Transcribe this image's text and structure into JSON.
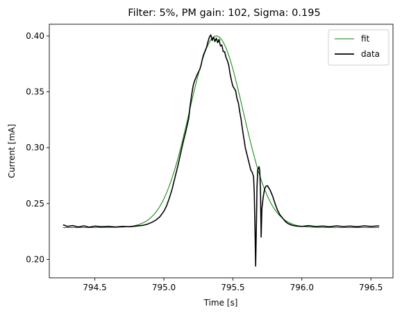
{
  "chart_data": {
    "type": "line",
    "title": "Filter: 5%, PM gain: 102, Sigma: 0.195",
    "xlabel": "Time [s]",
    "ylabel": "Current [mA]",
    "xlim": [
      794.17,
      796.66
    ],
    "ylim": [
      0.1835,
      0.4105
    ],
    "xticks": [
      794.5,
      795.0,
      795.5,
      796.0,
      796.5
    ],
    "xtick_labels": [
      "794.5",
      "795.0",
      "795.5",
      "796.0",
      "796.5"
    ],
    "yticks": [
      0.2,
      0.25,
      0.3,
      0.35,
      0.4
    ],
    "ytick_labels": [
      "0.20",
      "0.25",
      "0.30",
      "0.35",
      "0.40"
    ],
    "grid": false,
    "legend_position": "top-right",
    "series": [
      {
        "name": "fit",
        "color": "#008000",
        "style": "thin line",
        "model": "gaussian",
        "baseline": 0.2285,
        "amplitude": 0.1715,
        "center": 795.38,
        "sigma": 0.195,
        "x_range": [
          794.27,
          796.56
        ]
      },
      {
        "name": "data",
        "color": "#000000",
        "style": "line",
        "points": [
          [
            794.27,
            0.231
          ],
          [
            794.3,
            0.2295
          ],
          [
            794.34,
            0.2302
          ],
          [
            794.38,
            0.229
          ],
          [
            794.42,
            0.23
          ],
          [
            794.46,
            0.2288
          ],
          [
            794.5,
            0.2298
          ],
          [
            794.55,
            0.2292
          ],
          [
            794.6,
            0.2296
          ],
          [
            794.65,
            0.229
          ],
          [
            794.7,
            0.2295
          ],
          [
            794.75,
            0.2292
          ],
          [
            794.8,
            0.2298
          ],
          [
            794.85,
            0.2305
          ],
          [
            794.88,
            0.2315
          ],
          [
            794.91,
            0.233
          ],
          [
            794.94,
            0.235
          ],
          [
            794.97,
            0.238
          ],
          [
            795.0,
            0.243
          ],
          [
            795.02,
            0.248
          ],
          [
            795.04,
            0.255
          ],
          [
            795.06,
            0.263
          ],
          [
            795.08,
            0.273
          ],
          [
            795.1,
            0.283
          ],
          [
            795.12,
            0.294
          ],
          [
            795.14,
            0.305
          ],
          [
            795.16,
            0.315
          ],
          [
            795.18,
            0.326
          ],
          [
            795.19,
            0.337
          ],
          [
            795.2,
            0.346
          ],
          [
            795.21,
            0.354
          ],
          [
            795.22,
            0.359
          ],
          [
            795.23,
            0.362
          ],
          [
            795.24,
            0.365
          ],
          [
            795.26,
            0.37
          ],
          [
            795.27,
            0.374
          ],
          [
            795.28,
            0.38
          ],
          [
            795.29,
            0.384
          ],
          [
            795.3,
            0.387
          ],
          [
            795.31,
            0.39
          ],
          [
            795.32,
            0.395
          ],
          [
            795.33,
            0.399
          ],
          [
            795.34,
            0.401
          ],
          [
            795.35,
            0.396
          ],
          [
            795.36,
            0.399
          ],
          [
            795.37,
            0.395
          ],
          [
            795.38,
            0.398
          ],
          [
            795.39,
            0.394
          ],
          [
            795.4,
            0.397
          ],
          [
            795.41,
            0.391
          ],
          [
            795.42,
            0.392
          ],
          [
            795.43,
            0.386
          ],
          [
            795.44,
            0.386
          ],
          [
            795.45,
            0.381
          ],
          [
            795.46,
            0.378
          ],
          [
            795.47,
            0.374
          ],
          [
            795.48,
            0.366
          ],
          [
            795.49,
            0.36
          ],
          [
            795.5,
            0.355
          ],
          [
            795.51,
            0.353
          ],
          [
            795.52,
            0.351
          ],
          [
            795.53,
            0.344
          ],
          [
            795.54,
            0.34
          ],
          [
            795.55,
            0.332
          ],
          [
            795.56,
            0.325
          ],
          [
            795.57,
            0.316
          ],
          [
            795.58,
            0.308
          ],
          [
            795.59,
            0.3
          ],
          [
            795.6,
            0.295
          ],
          [
            795.61,
            0.29
          ],
          [
            795.62,
            0.285
          ],
          [
            795.63,
            0.28
          ],
          [
            795.64,
            0.278
          ],
          [
            795.65,
            0.274
          ],
          [
            795.655,
            0.26
          ],
          [
            795.66,
            0.23
          ],
          [
            795.665,
            0.194
          ],
          [
            795.67,
            0.228
          ],
          [
            795.675,
            0.265
          ],
          [
            795.68,
            0.28
          ],
          [
            795.69,
            0.283
          ],
          [
            795.695,
            0.279
          ],
          [
            795.7,
            0.262
          ],
          [
            795.705,
            0.22
          ],
          [
            795.71,
            0.245
          ],
          [
            795.72,
            0.256
          ],
          [
            795.73,
            0.263
          ],
          [
            795.74,
            0.2655
          ],
          [
            795.75,
            0.266
          ],
          [
            795.76,
            0.264
          ],
          [
            795.77,
            0.262
          ],
          [
            795.78,
            0.259
          ],
          [
            795.79,
            0.256
          ],
          [
            795.8,
            0.252
          ],
          [
            795.82,
            0.245
          ],
          [
            795.84,
            0.24
          ],
          [
            795.86,
            0.237
          ],
          [
            795.88,
            0.234
          ],
          [
            795.9,
            0.232
          ],
          [
            795.93,
            0.2305
          ],
          [
            795.96,
            0.2298
          ],
          [
            796.0,
            0.2295
          ],
          [
            796.05,
            0.2302
          ],
          [
            796.1,
            0.2294
          ],
          [
            796.15,
            0.2298
          ],
          [
            796.2,
            0.2292
          ],
          [
            796.25,
            0.23
          ],
          [
            796.3,
            0.2294
          ],
          [
            796.35,
            0.2298
          ],
          [
            796.4,
            0.2292
          ],
          [
            796.45,
            0.23
          ],
          [
            796.5,
            0.2295
          ],
          [
            796.56,
            0.23
          ]
        ]
      }
    ]
  }
}
